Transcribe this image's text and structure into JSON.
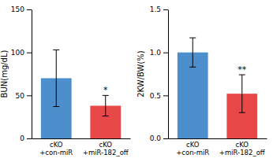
{
  "chart_data": [
    {
      "type": "bar",
      "ylabel": "BUN(mg/dL)",
      "categories": [
        "cKO\n+con-miR",
        "cKO\n+miR-182_off"
      ],
      "values": [
        70,
        38
      ],
      "errors": [
        33,
        12
      ],
      "colors": [
        "#4D8FCC",
        "#E84848"
      ],
      "ylim": [
        0,
        150
      ],
      "yticks": [
        0,
        50,
        100,
        150
      ],
      "annotations": [
        null,
        "*"
      ]
    },
    {
      "type": "bar",
      "ylabel": "2KW/BW(%)",
      "categories": [
        "cKO\n+con-miR",
        "cKO\n+miR-182_off"
      ],
      "values": [
        1.0,
        0.52
      ],
      "errors": [
        0.17,
        0.22
      ],
      "colors": [
        "#4D8FCC",
        "#E84848"
      ],
      "ylim": [
        0.0,
        1.5
      ],
      "yticks": [
        {
          "value": 0.0,
          "label": "0.0"
        },
        {
          "value": 0.5,
          "label": "0.5"
        },
        {
          "value": 1.0,
          "label": "1.0"
        },
        {
          "value": 1.5,
          "label": "1.5"
        }
      ],
      "annotations": [
        null,
        "**"
      ]
    }
  ]
}
